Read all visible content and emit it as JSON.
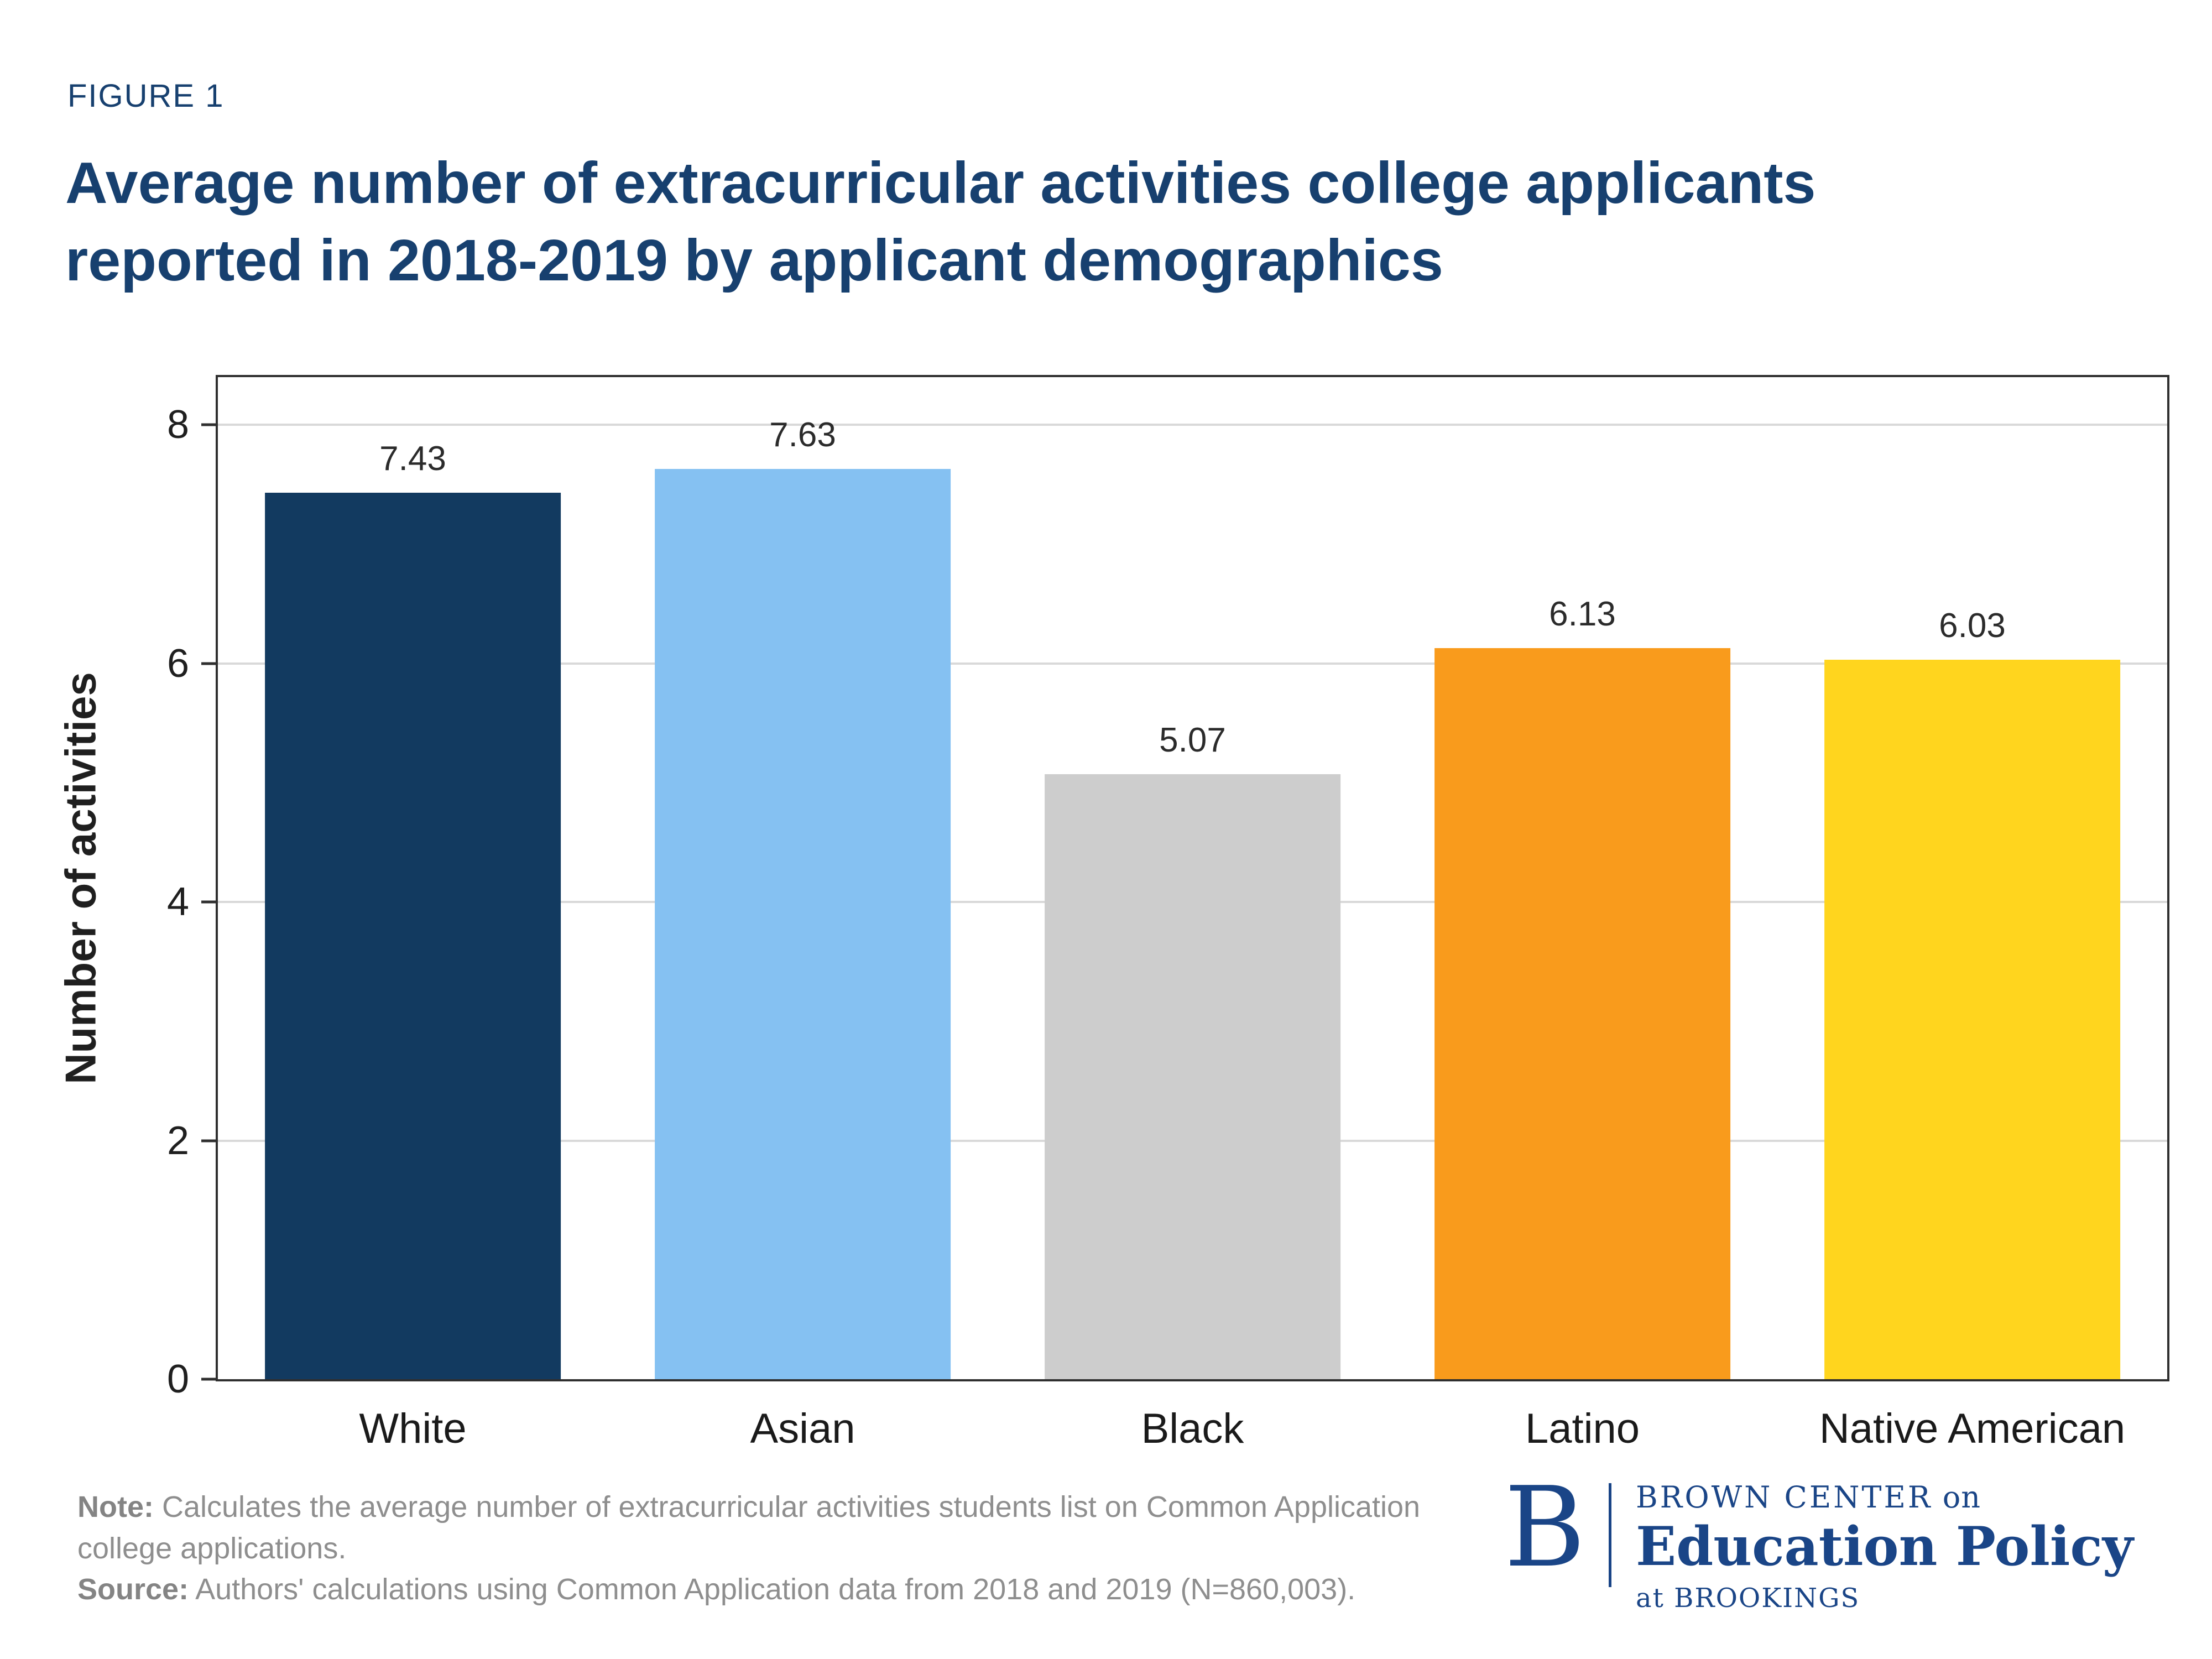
{
  "figure_label": "FIGURE 1",
  "title": {
    "line1": "Average number of extracurricular activities college applicants",
    "line2": "reported in 2018-2019 by applicant demographics"
  },
  "chart_data": {
    "type": "bar",
    "title": "Average number of extracurricular activities college applicants reported in 2018-2019 by applicant demographics",
    "categories": [
      "White",
      "Asian",
      "Black",
      "Latino",
      "Native American"
    ],
    "values": [
      7.43,
      7.63,
      5.07,
      6.13,
      6.03
    ],
    "value_labels": [
      "7.43",
      "7.63",
      "5.07",
      "6.13",
      "6.03"
    ],
    "bar_colors": [
      "#123A60",
      "#85C1F2",
      "#CDCDCD",
      "#F99B1C",
      "#FFD51E"
    ],
    "xlabel": "",
    "ylabel": "Number of activities",
    "yticks": [
      0,
      2,
      4,
      6,
      8
    ],
    "ylim": [
      0,
      8.4
    ],
    "grid": true,
    "legend": "none"
  },
  "note": {
    "note_label": "Note:",
    "note_text": " Calculates the average number of extracurricular activities students list on Common Application college applications.",
    "source_label": "Source:",
    "source_text": " Authors' calculations using Common Application data from 2018 and 2019 (N=860,003)."
  },
  "logo": {
    "letter": "B",
    "line1_main": "BROWN CENTER",
    "line1_suffix": " on",
    "line2": "Education Policy",
    "line3": "at BROOKINGS"
  },
  "colors": {
    "title_navy": "#17406F",
    "logo_navy": "#1A4587",
    "note_gray": "#8E8E8E",
    "gridline": "#D9D9D9",
    "plot_border": "#2F2F2F"
  }
}
